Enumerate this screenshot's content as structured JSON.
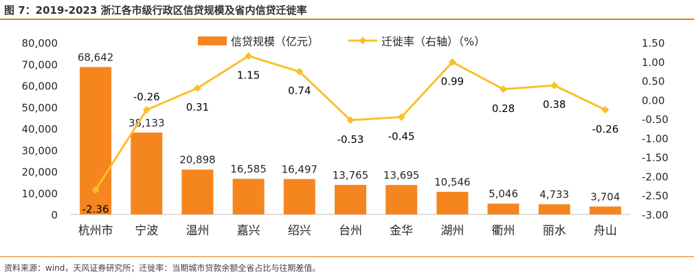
{
  "figure_title": "图 7：2019-2023 浙江各市级行政区信贷规模及省内信贷迁徙率",
  "source_note": "资料来源：wind，天风证券研究所；迁徙率：当期城市贷款余额全省占比与往期差值。",
  "colors": {
    "bar": "#f5861f",
    "line": "#fbbf2a",
    "rule": "#e07b1a",
    "text": "#262626"
  },
  "chart_data": {
    "type": "bar",
    "categories": [
      "杭州市",
      "宁波",
      "温州",
      "嘉兴",
      "绍兴",
      "台州",
      "金华",
      "湖州",
      "衢州",
      "丽水",
      "舟山"
    ],
    "series": [
      {
        "name": "信贷规模（亿元）",
        "type": "bar",
        "axis": "left",
        "values": [
          68642,
          38133,
          20898,
          16585,
          16497,
          13765,
          13695,
          10546,
          5046,
          4733,
          3704
        ],
        "labels": [
          "68,642",
          "38,133",
          "20,898",
          "16,585",
          "16,497",
          "13,765",
          "13,695",
          "10,546",
          "5,046",
          "4,733",
          "3,704"
        ]
      },
      {
        "name": "迁徙率（右轴）（%）",
        "type": "line",
        "axis": "right",
        "values": [
          -2.36,
          -0.26,
          0.31,
          1.15,
          0.74,
          -0.53,
          -0.45,
          0.99,
          0.28,
          0.38,
          -0.26
        ],
        "labels": [
          "-2.36",
          "-0.26",
          "0.31",
          "1.15",
          "0.74",
          "-0.53",
          "-0.45",
          "0.99",
          "0.28",
          "0.38",
          "-0.26"
        ]
      }
    ],
    "y_left": {
      "min": 0,
      "max": 80000,
      "ticks": [
        0,
        10000,
        20000,
        30000,
        40000,
        50000,
        60000,
        70000,
        80000
      ],
      "tick_labels": [
        "0",
        "10,000",
        "20,000",
        "30,000",
        "40,000",
        "50,000",
        "60,000",
        "70,000",
        "80,000"
      ]
    },
    "y_right": {
      "min": -3.0,
      "max": 1.5,
      "ticks": [
        -3.0,
        -2.5,
        -2.0,
        -1.5,
        -1.0,
        -0.5,
        0.0,
        0.5,
        1.0,
        1.5
      ],
      "tick_labels": [
        "-3.00",
        "-2.50",
        "-2.00",
        "-1.50",
        "-1.00",
        "-0.50",
        "0.00",
        "0.50",
        "1.00",
        "1.50"
      ]
    },
    "legend_position": "top-center",
    "grid": false
  }
}
